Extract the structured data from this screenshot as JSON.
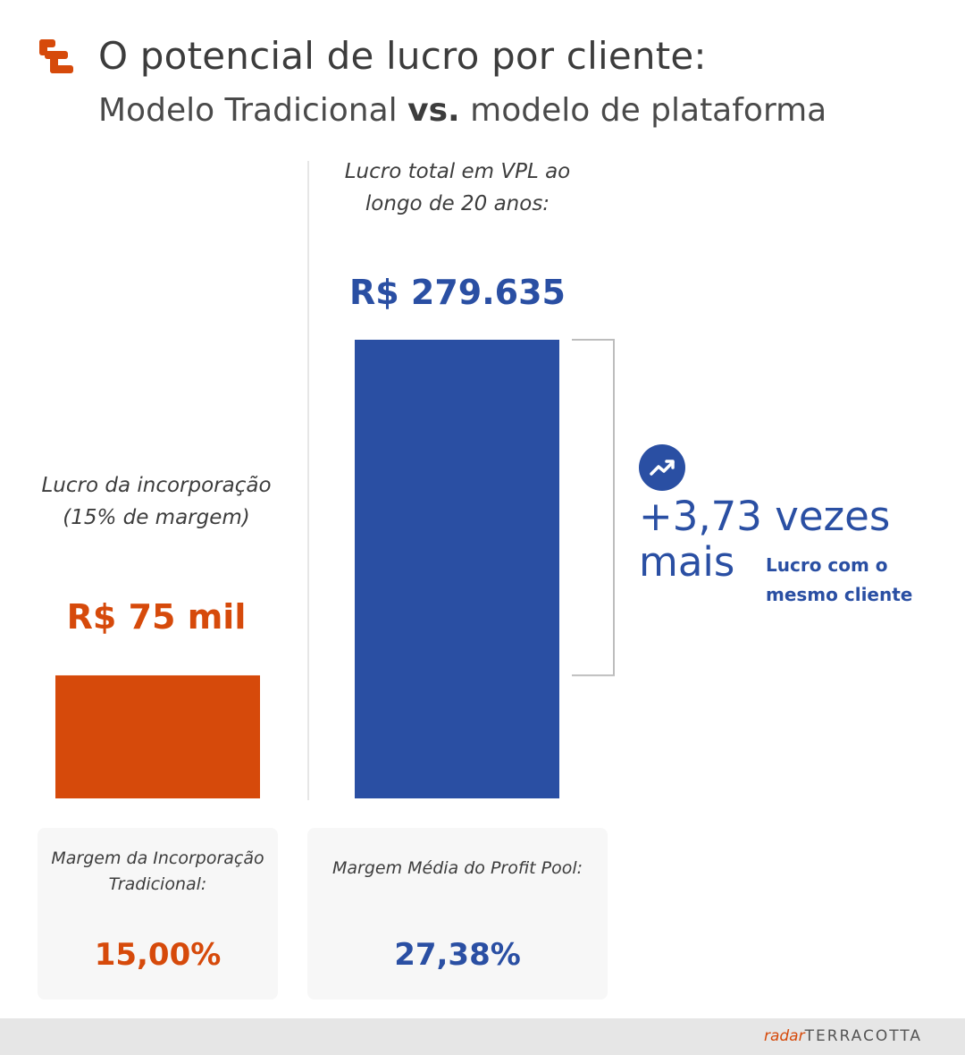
{
  "header": {
    "title": "O potencial de lucro por cliente:",
    "subtitle_main": "Modelo Tradicional ",
    "subtitle_vs": "vs.",
    "subtitle_rest": " modelo de plataforma",
    "logo_icon": "terracotta-logo-icon"
  },
  "colors": {
    "orange": "#d64a0b",
    "blue": "#2a4fa3",
    "text": "#3c3c3c"
  },
  "chart_data": {
    "type": "bar",
    "categories": [
      "Lucro da incorporação (15% de margem)",
      "Lucro total em VPL ao longo de 20 anos:"
    ],
    "values": [
      75000,
      279635
    ],
    "value_labels": [
      "R$ 75 mil",
      "R$ 279.635"
    ],
    "colors": [
      "#d64a0b",
      "#2a4fa3"
    ],
    "ylim": [
      0,
      279635
    ],
    "grid": false
  },
  "left": {
    "label": "Lucro da incorporação (15% de margem)",
    "value": "R$ 75 mil"
  },
  "right": {
    "label": "Lucro total em VPL ao longo de 20 anos:",
    "value": "R$ 279.635"
  },
  "comparison": {
    "icon": "trend-up-icon",
    "multiplier": "+3,73 vezes",
    "mais": "mais",
    "note": "Lucro com o mesmo cliente"
  },
  "cards": {
    "left": {
      "label": "Margem da Incorporação Tradicional:",
      "value": "15,00%"
    },
    "right": {
      "label": "Margem Média do Profit Pool:",
      "value": "27,38%"
    }
  },
  "footer": {
    "brand_radar": "radar",
    "brand_terracotta": "TERRACOTTA"
  }
}
